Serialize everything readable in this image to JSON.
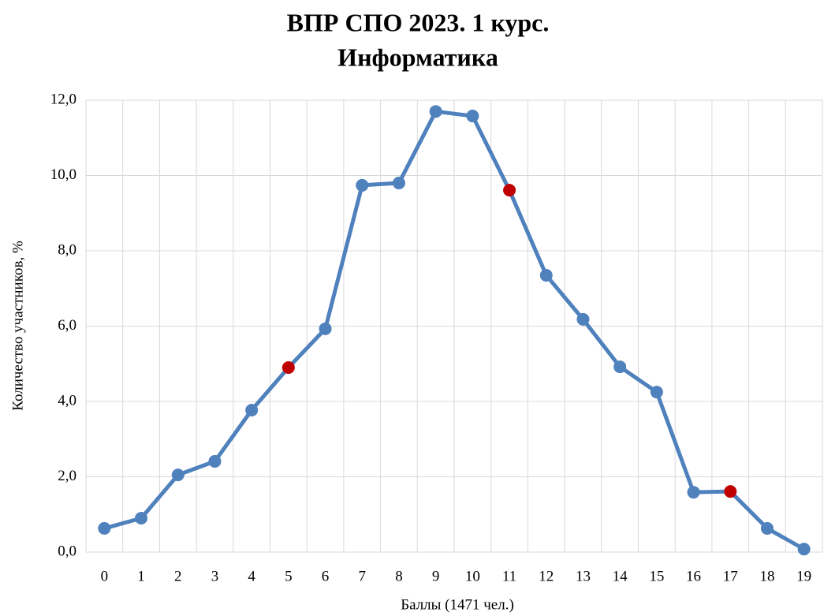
{
  "chart_data": {
    "type": "line",
    "title": [
      "ВПР СПО 2023. 1 курс.",
      "Информатика"
    ],
    "x_label": "Баллы (1471 чел.)",
    "y_label": "Количество участников, %",
    "categories": [
      "0",
      "1",
      "2",
      "3",
      "4",
      "5",
      "6",
      "7",
      "8",
      "9",
      "10",
      "11",
      "12",
      "13",
      "14",
      "15",
      "16",
      "17",
      "18",
      "19"
    ],
    "series": [
      {
        "name": "Информатика",
        "color": "#4f81bd",
        "values": [
          0.63,
          0.9,
          2.05,
          2.41,
          3.77,
          4.9,
          5.93,
          9.74,
          9.8,
          11.7,
          11.58,
          9.61,
          7.35,
          6.18,
          4.92,
          4.25,
          1.59,
          1.61,
          0.63,
          0.08
        ],
        "marker_colors": [
          "#4f81bd",
          "#4f81bd",
          "#4f81bd",
          "#4f81bd",
          "#4f81bd",
          "#c00000",
          "#4f81bd",
          "#4f81bd",
          "#4f81bd",
          "#4f81bd",
          "#4f81bd",
          "#c00000",
          "#4f81bd",
          "#4f81bd",
          "#4f81bd",
          "#4f81bd",
          "#4f81bd",
          "#c00000",
          "#4f81bd",
          "#4f81bd"
        ]
      }
    ],
    "ylim": [
      0,
      12
    ],
    "yticks": [
      {
        "value": 0,
        "label": "0,0"
      },
      {
        "value": 2,
        "label": "2,0"
      },
      {
        "value": 4,
        "label": "4,0"
      },
      {
        "value": 6,
        "label": "6,0"
      },
      {
        "value": 8,
        "label": "8,0"
      },
      {
        "value": 10,
        "label": "10,0"
      },
      {
        "value": 12,
        "label": "12,0"
      }
    ],
    "grid": true
  }
}
